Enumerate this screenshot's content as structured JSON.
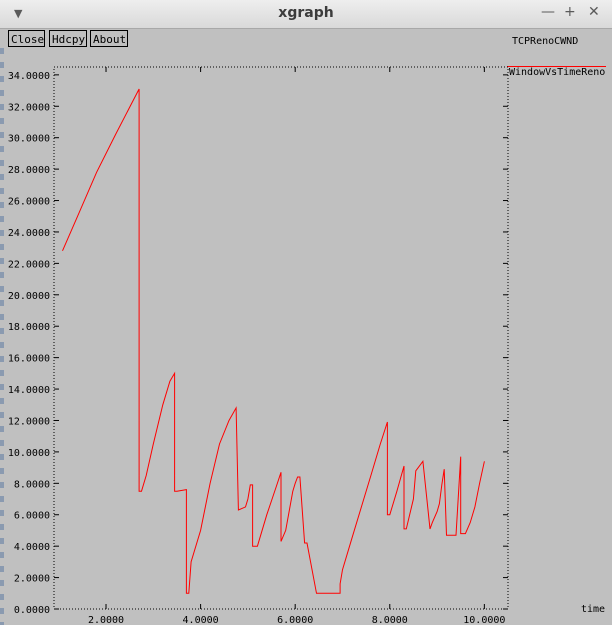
{
  "window": {
    "title": "xgraph",
    "menu_icon": "chevron-down-icon",
    "minimize_icon": "minimize-icon",
    "maximize_icon": "maximize-icon",
    "close_icon": "close-icon"
  },
  "toolbar": {
    "close_label": "Close",
    "hdcpy_label": "Hdcpy",
    "about_label": "About"
  },
  "graph": {
    "y_label": "TCPRenoCWND",
    "x_label": "time",
    "legend": "WindowVsTimeReno",
    "line_color": "#ff0000",
    "background_color": "#c0c0c0"
  },
  "chart_data": {
    "type": "line",
    "ylabel": "TCPRenoCWND",
    "xlabel": "time",
    "xlim": [
      0.9,
      10.5
    ],
    "ylim": [
      0,
      34.5
    ],
    "x_ticks": [
      "2.0000",
      "4.0000",
      "6.0000",
      "8.0000",
      "10.0000"
    ],
    "x_tick_values": [
      2,
      4,
      6,
      8,
      10
    ],
    "y_ticks": [
      "0.0000",
      "2.0000",
      "4.0000",
      "6.0000",
      "8.0000",
      "10.0000",
      "12.0000",
      "14.0000",
      "16.0000",
      "18.0000",
      "20.0000",
      "22.0000",
      "24.0000",
      "26.0000",
      "28.0000",
      "30.0000",
      "32.0000",
      "34.0000"
    ],
    "y_tick_values": [
      0,
      2,
      4,
      6,
      8,
      10,
      12,
      14,
      16,
      18,
      20,
      22,
      24,
      26,
      28,
      30,
      32,
      34
    ],
    "grid": false,
    "series": [
      {
        "name": "WindowVsTimeReno",
        "x": [
          1.08,
          1.4,
          1.8,
          2.2,
          2.7,
          2.7,
          2.75,
          2.85,
          3.0,
          3.2,
          3.35,
          3.45,
          3.45,
          3.5,
          3.7,
          3.7,
          3.75,
          3.8,
          4.0,
          4.2,
          4.4,
          4.6,
          4.75,
          4.8,
          4.8,
          4.95,
          5.0,
          5.05,
          5.1,
          5.1,
          5.2,
          5.4,
          5.6,
          5.7,
          5.7,
          5.8,
          5.95,
          6.0,
          6.05,
          6.1,
          6.2,
          6.25,
          6.25,
          6.45,
          6.45,
          6.95,
          6.95,
          7.0,
          7.2,
          7.4,
          7.6,
          7.8,
          7.95,
          7.95,
          8.0,
          8.15,
          8.3,
          8.3,
          8.35,
          8.5,
          8.55,
          8.55,
          8.7,
          8.85,
          8.85,
          8.9,
          9.0,
          9.05,
          9.1,
          9.15,
          9.2,
          9.4,
          9.5,
          9.5,
          9.6,
          9.7,
          9.8,
          9.9,
          10.0
        ],
        "y": [
          22.8,
          25.0,
          27.8,
          30.2,
          33.1,
          7.5,
          7.5,
          8.5,
          10.5,
          13.0,
          14.5,
          15.0,
          7.5,
          7.5,
          7.6,
          1.0,
          1.0,
          3.0,
          5.0,
          8.0,
          10.5,
          12.0,
          12.8,
          6.3,
          6.3,
          6.5,
          7.0,
          7.9,
          7.9,
          4.0,
          4.0,
          6.0,
          7.8,
          8.7,
          4.3,
          5.0,
          7.5,
          8.0,
          8.4,
          8.4,
          4.2,
          4.2,
          4.2,
          1.0,
          1.0,
          1.0,
          1.6,
          2.5,
          4.5,
          6.5,
          8.5,
          10.5,
          11.9,
          6.0,
          6.0,
          7.5,
          9.1,
          5.1,
          5.1,
          7.0,
          8.8,
          8.8,
          9.4,
          5.1,
          5.1,
          5.5,
          6.2,
          6.7,
          7.9,
          8.9,
          4.7,
          4.7,
          9.7,
          4.8,
          4.8,
          5.5,
          6.5,
          8.0,
          9.4
        ]
      }
    ]
  }
}
